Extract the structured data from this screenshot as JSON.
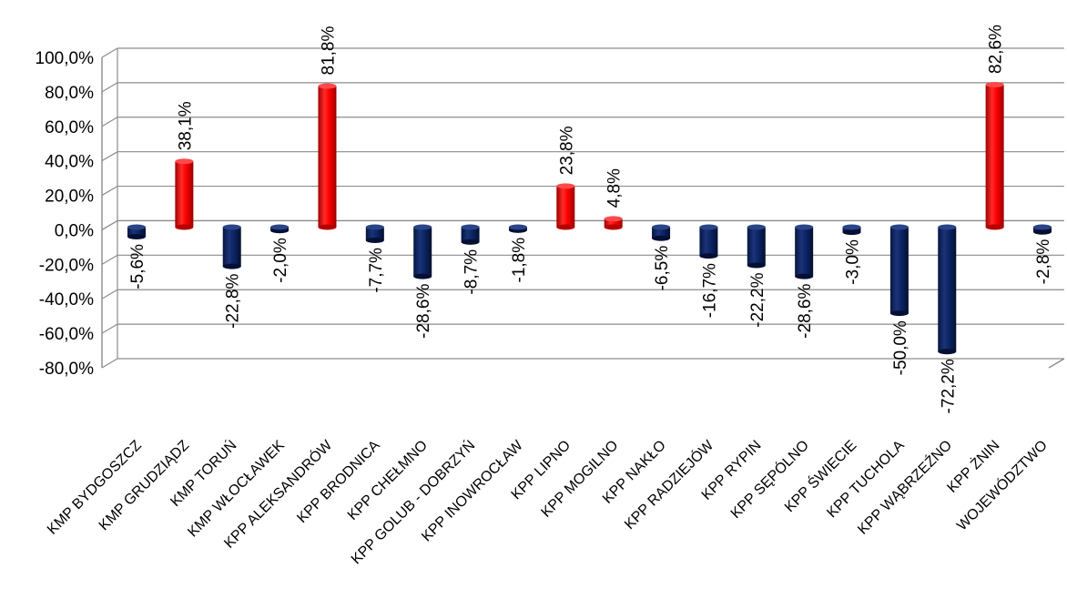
{
  "chart_data": {
    "type": "bar",
    "categories": [
      "KMP  BYDGOSZCZ",
      "KMP  GRUDZIĄDZ",
      "KMP  TORUŃ",
      "KMP  WŁOCŁAWEK",
      "KPP  ALEKSANDRÓW",
      "KPP BRODNICA",
      "KPP  CHEŁMNO",
      "KPP  GOLUB - DOBRZYŃ",
      "KPP  INOWROCŁAW",
      "KPP  LIPNO",
      "KPP  MOGILNO",
      "KPP  NAKŁO",
      "KPP  RADZIEJÓW",
      "KPP  RYPIN",
      "KPP  SĘPÓLNO",
      "KPP  ŚWIECIE",
      "KPP  TUCHOLA",
      "KPP  WĄBRZEŹNO",
      "KPP  ŻNIN",
      "WOJEWÓDZTWO"
    ],
    "values": [
      -5.6,
      38.1,
      -22.8,
      -2.0,
      81.8,
      -7.7,
      -28.6,
      -8.7,
      -1.8,
      23.8,
      4.8,
      -6.5,
      -16.7,
      -22.2,
      -28.6,
      -3.0,
      -50.0,
      -72.2,
      82.6,
      -2.8
    ],
    "value_labels": [
      "-5,6%",
      "38,1%",
      "-22,8%",
      "-2,0%",
      "81,8%",
      "-7,7%",
      "-28,6%",
      "-8,7%",
      "-1,8%",
      "23,8%",
      "4,8%",
      "-6,5%",
      "-16,7%",
      "-22,2%",
      "-28,6%",
      "-3,0%",
      "-50,0%",
      "-72,2%",
      "82,6%",
      "-2,8%"
    ],
    "ylim": [
      -80,
      100
    ],
    "yticks": [
      100,
      80,
      60,
      40,
      20,
      0,
      -20,
      -40,
      -60,
      -80
    ],
    "ytick_labels": [
      "100,0%",
      "80,0%",
      "60,0%",
      "40,0%",
      "20,0%",
      "0,0%",
      "-20,0%",
      "-40,0%",
      "-60,0%",
      "-80,0%"
    ],
    "grid": true,
    "legend": "none",
    "colors": {
      "positive": "#ff0000",
      "positive_dark": "#b40000",
      "negative": "#0a1f5e",
      "negative_dark": "#050f33"
    },
    "title": "",
    "xlabel": "",
    "ylabel": ""
  }
}
